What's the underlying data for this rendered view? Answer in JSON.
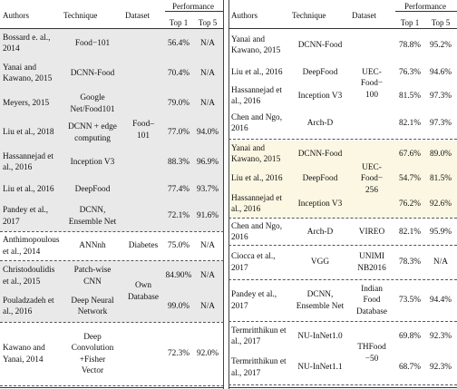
{
  "colors": {
    "shade_gray": "#e9e9e9",
    "shade_yellow": "#fbf7e3",
    "rule": "#333333"
  },
  "left": {
    "headers": {
      "authors": "Authors",
      "technique": "Technique",
      "dataset": "Dataset",
      "performance": "Performance",
      "top1": "Top 1",
      "top5": "Top 5"
    },
    "groups": [
      {
        "dataset": "Food–\n101",
        "rows": [
          {
            "author": "Bossard e. al.,\n2014",
            "technique": "Food−101",
            "top1": "56.4%",
            "top5": "N/A"
          },
          {
            "author": "Yanai and\nKawano, 2015",
            "technique": "DCNN-Food",
            "top1": "70.4%",
            "top5": "N/A"
          },
          {
            "author": "Meyers, 2015",
            "technique": "Google\nNet/Food101",
            "top1": "79.0%",
            "top5": "N/A"
          },
          {
            "author": "Liu et al., 2018",
            "technique": "DCNN + edge\ncomputing",
            "top1": "77.0%",
            "top5": "94.0%"
          },
          {
            "author": "Hassannejad et\nal., 2016",
            "technique": "Inception V3",
            "top1": "88.3%",
            "top5": "96.9%"
          },
          {
            "author": "Liu et al., 2016",
            "technique": "DeepFood",
            "top1": "77.4%",
            "top5": "93.7%"
          },
          {
            "author": "Pandey et al.,\n2017",
            "technique": "DCNN,\nEnsemble Net",
            "top1": "72.1%",
            "top5": "91.6%"
          }
        ]
      },
      {
        "dataset": "Diabetes",
        "rows": [
          {
            "author": "Anthimopoulous\net al., 2014",
            "technique": "ANNnh",
            "top1": "75.0%",
            "top5": "N/A"
          }
        ]
      },
      {
        "dataset": "Own\nDatabase",
        "rows": [
          {
            "author": "Christodoulidis\net al., 2015",
            "technique": "Patch-wise\nCNN",
            "top1": "84.90%",
            "top5": "N/A"
          },
          {
            "author": "Pouladzadeh et\nal., 2016",
            "technique": "Deep Neural\nNetwork",
            "top1": "99.0%",
            "top5": "N/A"
          }
        ]
      },
      {
        "dataset": "",
        "rows": [
          {
            "author": "Kawano and\nYanai, 2014",
            "technique": "Deep\nConvolution\n+Fisher\nVector",
            "top1": "72.3%",
            "top5": "92.0%"
          }
        ]
      }
    ]
  },
  "right": {
    "headers": {
      "authors": "Authors",
      "technique": "Technique",
      "dataset": "Dataset",
      "performance": "Performance",
      "top1": "Top 1",
      "top5": "Top 5"
    },
    "groups": [
      {
        "dataset": "UEC-\nFood−\n100",
        "rows": [
          {
            "author": "Yanai and\nKawano, 2015",
            "technique": "DCNN-Food",
            "top1": "78.8%",
            "top5": "95.2%"
          },
          {
            "author": "Liu et al., 2016",
            "technique": "DeepFood",
            "top1": "76.3%",
            "top5": "94.6%"
          },
          {
            "author": "Hassannejad et\nal., 2016",
            "technique": "Inception V3",
            "top1": "81.5%",
            "top5": "97.3%"
          },
          {
            "author": "Chen and Ngo,\n2016",
            "technique": "Arch-D",
            "top1": "82.1%",
            "top5": "97.3%"
          }
        ]
      },
      {
        "dataset": "UEC-\nFood−\n256",
        "rows": [
          {
            "author": "Yanai and\nKawano, 2015",
            "technique": "DCNN-Food",
            "top1": "67.6%",
            "top5": "89.0%"
          },
          {
            "author": "Liu et al., 2016",
            "technique": "DeepFood",
            "top1": "54.7%",
            "top5": "81.5%"
          },
          {
            "author": "Hassannejad et\nal., 2016",
            "technique": "Inception V3",
            "top1": "76.2%",
            "top5": "92.6%"
          }
        ]
      },
      {
        "dataset": "VIREO",
        "rows": [
          {
            "author": "Chen and Ngo,\n2016",
            "technique": "Arch-D",
            "top1": "82.1%",
            "top5": "95.9%"
          }
        ]
      },
      {
        "dataset": "UNIMI\nNB2016",
        "rows": [
          {
            "author": "Ciocca et al.,\n2017",
            "technique": "VGG",
            "top1": "78.3%",
            "top5": "N/A"
          }
        ]
      },
      {
        "dataset": "Indian\nFood\nDatabase",
        "rows": [
          {
            "author": "Pandey et al.,\n2017",
            "technique": "DCNN,\nEnsemble Net",
            "top1": "73.5%",
            "top5": "94.4%"
          }
        ]
      },
      {
        "dataset": "THFood\n−50",
        "rows": [
          {
            "author": "Termritthikun et\nal., 2017",
            "technique": "NU-InNet1.0",
            "top1": "69.8%",
            "top5": "92.3%"
          },
          {
            "author": "Termritthikun et\nal., 2017",
            "technique": "NU-InNet1.1",
            "top1": "68.7%",
            "top5": "92.3%"
          }
        ]
      }
    ]
  }
}
